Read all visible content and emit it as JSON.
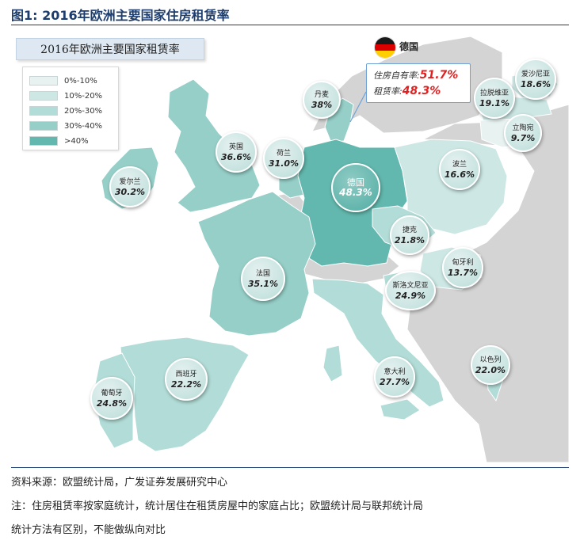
{
  "figure": {
    "title": "图1:  2016年欧洲主要国家住房租赁率"
  },
  "map": {
    "title": "2016年欧洲主要国家租赁率",
    "colors": {
      "sea": "#ffffff",
      "other_land": "#d4d4d4",
      "band_0_10": "#e7f2f1",
      "band_10_20": "#cce7e4",
      "band_20_30": "#b2dcd7",
      "band_30_40": "#96cfc8",
      "band_40_plus": "#62b8ae"
    },
    "legend": [
      {
        "label": "0%-10%",
        "color": "#e7f2f1"
      },
      {
        "label": "10%-20%",
        "color": "#cce7e4"
      },
      {
        "label": "20%-30%",
        "color": "#b2dcd7"
      },
      {
        "label": "30%-40%",
        "color": "#96cfc8"
      },
      {
        "label": ">40%",
        "color": "#62b8ae"
      }
    ],
    "highlight": {
      "country": "德国",
      "flag_icon": "germany-flag-icon",
      "flag_colors": [
        "#1a1a1a",
        "#dd0000",
        "#ffce00"
      ],
      "ownership_label": "住房自有率:",
      "ownership_value": "51.7%",
      "rental_label": "租赁率:",
      "rental_value": "48.3%"
    },
    "countries": [
      {
        "name": "爱沙尼亚",
        "value": "18.6%"
      },
      {
        "name": "拉脱维亚",
        "value": "19.1%"
      },
      {
        "name": "立陶宛",
        "value": "9.7%"
      },
      {
        "name": "丹麦",
        "value": "38%"
      },
      {
        "name": "英国",
        "value": "36.6%"
      },
      {
        "name": "荷兰",
        "value": "31.0%"
      },
      {
        "name": "爱尔兰",
        "value": "30.2%"
      },
      {
        "name": "德国",
        "value": "48.3%"
      },
      {
        "name": "波兰",
        "value": "16.6%"
      },
      {
        "name": "捷克",
        "value": "21.8%"
      },
      {
        "name": "法国",
        "value": "35.1%"
      },
      {
        "name": "匈牙利",
        "value": "13.7%"
      },
      {
        "name": "斯洛文尼亚",
        "value": "24.9%"
      },
      {
        "name": "以色列",
        "value": "22.0%"
      },
      {
        "name": "西班牙",
        "value": "22.2%"
      },
      {
        "name": "意大利",
        "value": "27.7%"
      },
      {
        "name": "葡萄牙",
        "value": "24.8%"
      }
    ]
  },
  "footer": {
    "source": "资料来源：欧盟统计局，广发证券发展研究中心",
    "note_line1": "注：住房租赁率按家庭统计，统计居住在租赁房屋中的家庭占比；欧盟统计局与联邦统计局",
    "note_line2": "统计方法有区别，不能做纵向对比"
  }
}
